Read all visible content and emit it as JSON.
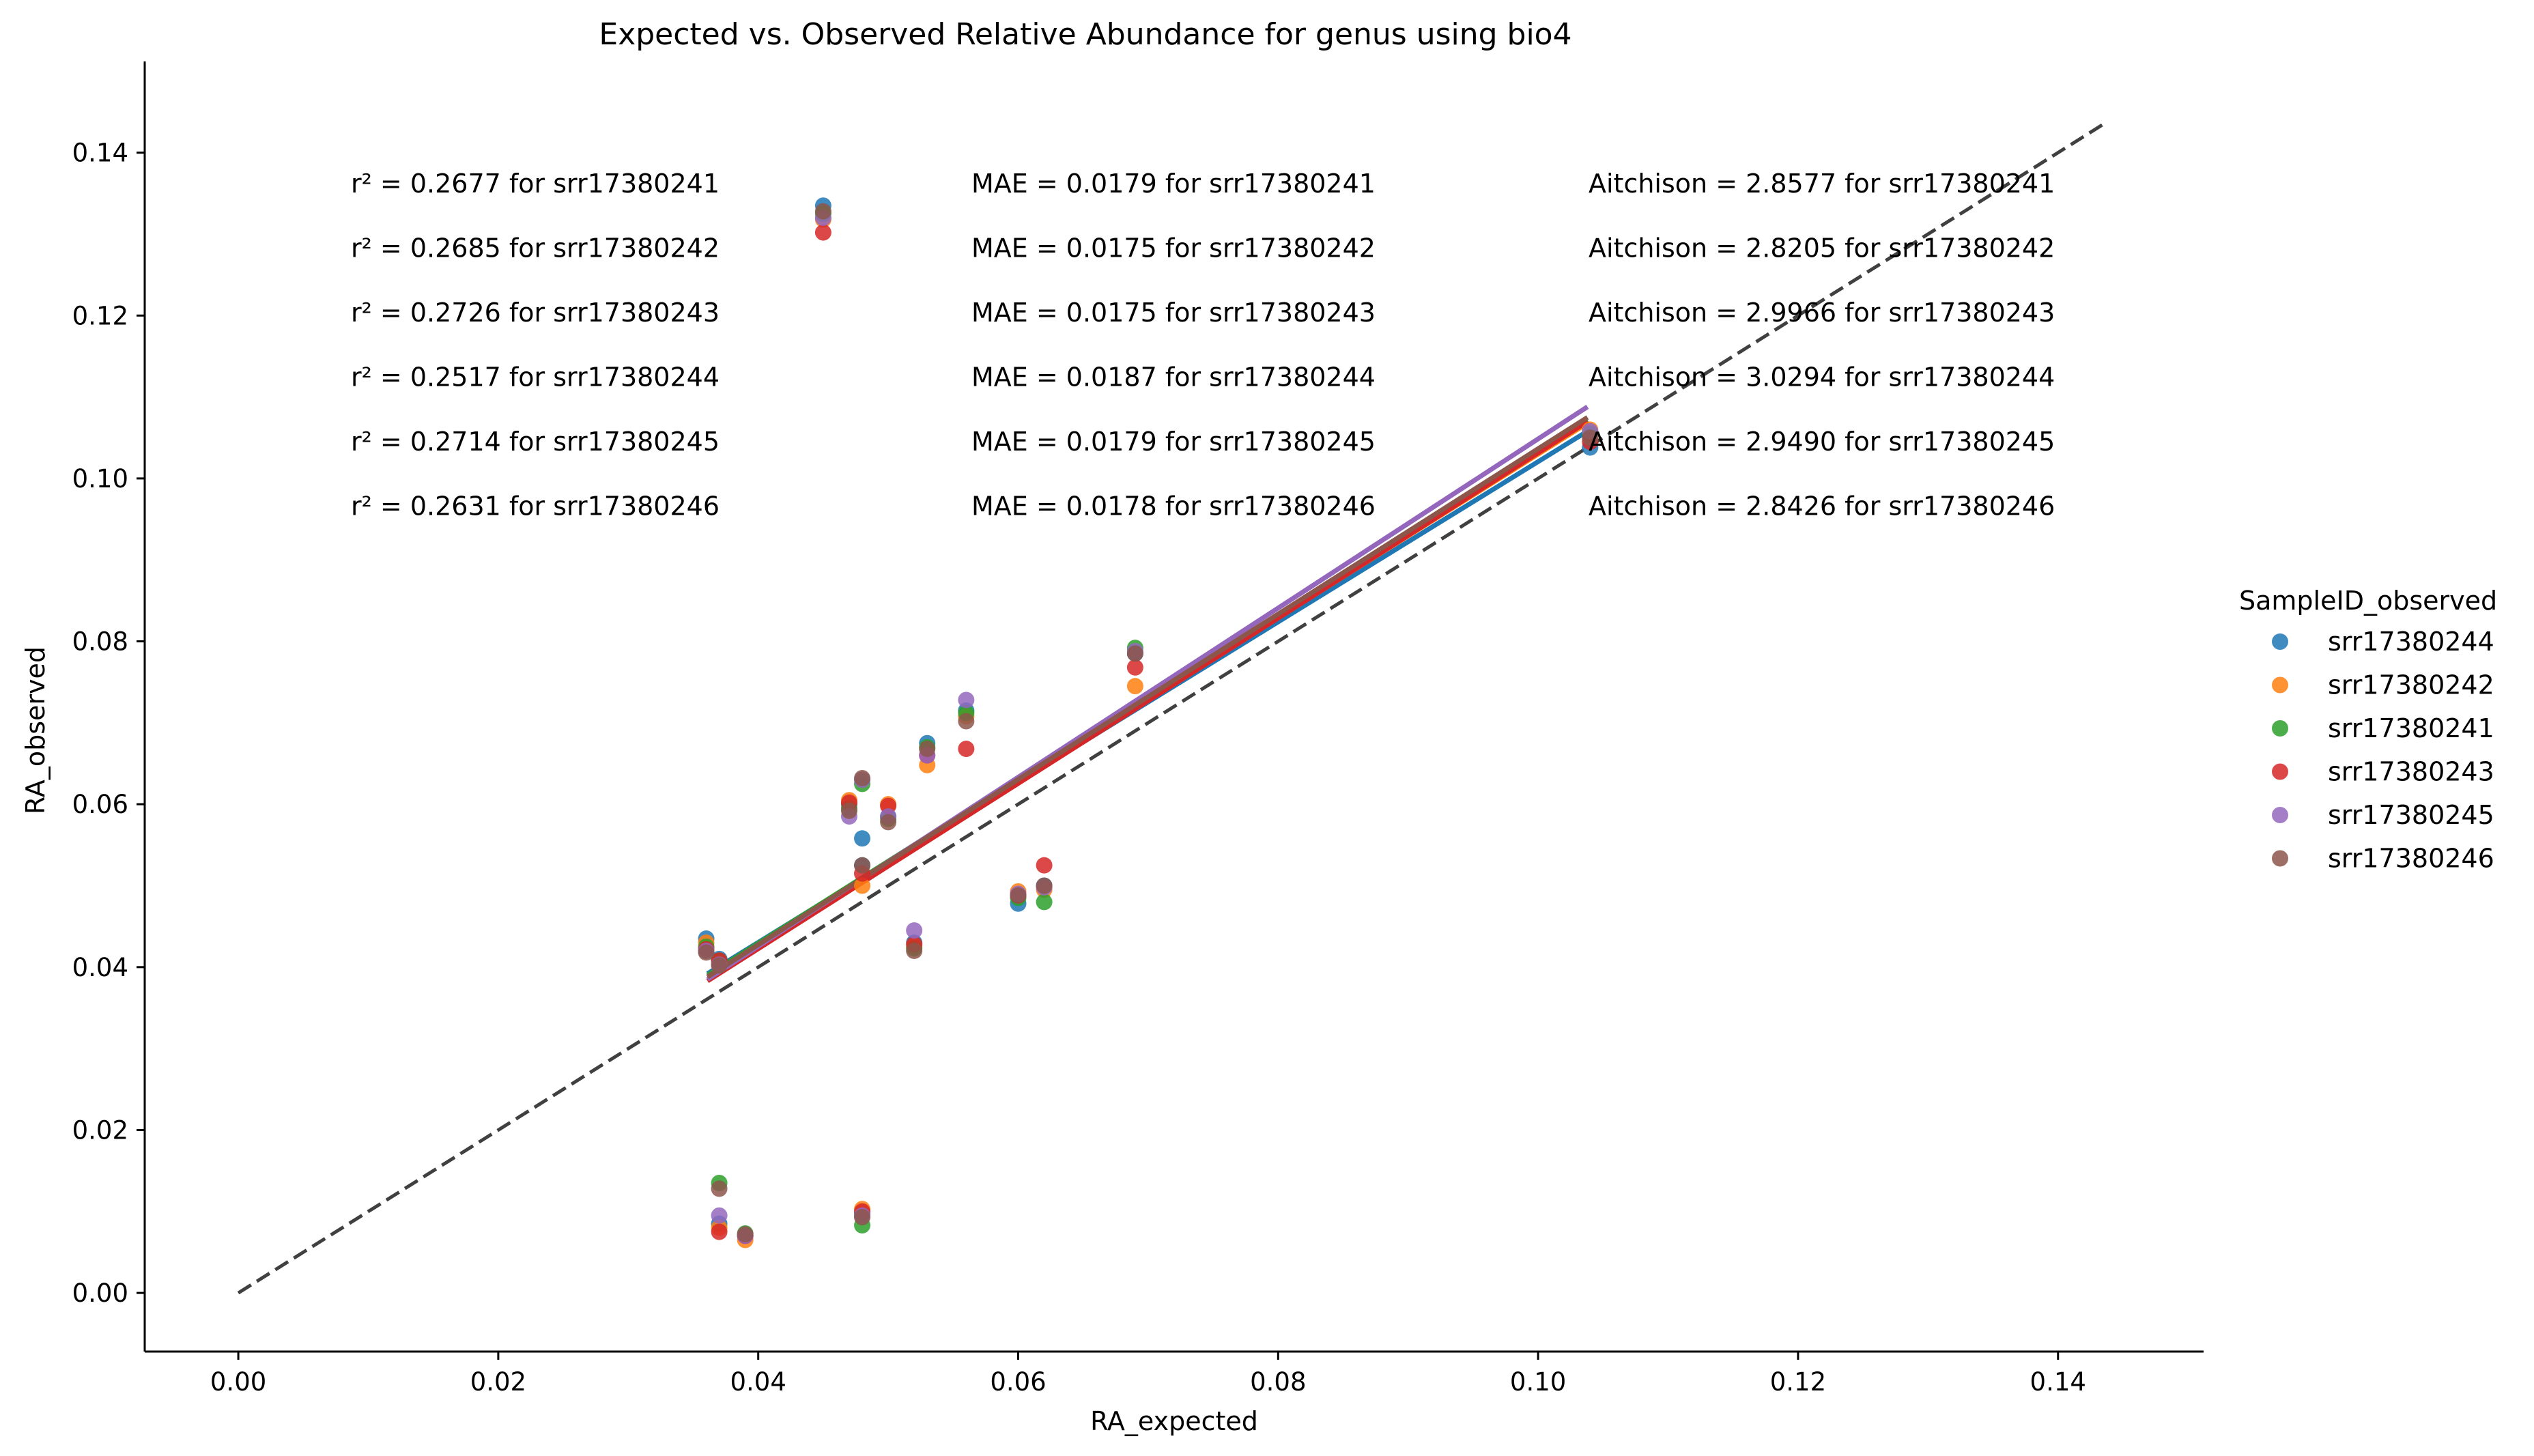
{
  "chart_data": {
    "type": "scatter",
    "title": "Expected vs. Observed Relative Abundance for genus using bio4",
    "xlabel": "RA_expected",
    "ylabel": "RA_observed",
    "xlim": [
      -0.0072,
      0.1512
    ],
    "ylim": [
      -0.0072,
      0.1512
    ],
    "xticks": [
      0.0,
      0.02,
      0.04,
      0.06,
      0.08,
      0.1,
      0.12,
      0.14
    ],
    "yticks": [
      0.0,
      0.02,
      0.04,
      0.06,
      0.08,
      0.1,
      0.12,
      0.14
    ],
    "xtick_labels": [
      "0.00",
      "0.02",
      "0.04",
      "0.06",
      "0.08",
      "0.10",
      "0.12",
      "0.14"
    ],
    "ytick_labels": [
      "0.00",
      "0.02",
      "0.04",
      "0.06",
      "0.08",
      "0.10",
      "0.12",
      "0.14"
    ],
    "identity_line": {
      "from": [
        0.0,
        0.0
      ],
      "to": [
        0.1435,
        0.1435
      ],
      "style": "dashed",
      "color": "#404040"
    },
    "legend": {
      "title": "SampleID_observed",
      "placement": "right"
    },
    "series": [
      {
        "name": "srr17380244",
        "color": "#1f77b4",
        "points": [
          [
            0.036,
            0.0435
          ],
          [
            0.037,
            0.041
          ],
          [
            0.037,
            0.0085
          ],
          [
            0.039,
            0.007
          ],
          [
            0.045,
            0.1335
          ],
          [
            0.047,
            0.06
          ],
          [
            0.048,
            0.0558
          ],
          [
            0.048,
            0.0525
          ],
          [
            0.048,
            0.0098
          ],
          [
            0.05,
            0.0585
          ],
          [
            0.052,
            0.043
          ],
          [
            0.053,
            0.0675
          ],
          [
            0.056,
            0.0715
          ],
          [
            0.06,
            0.0478
          ],
          [
            0.062,
            0.05
          ],
          [
            0.069,
            0.0785
          ],
          [
            0.104,
            0.1038
          ]
        ],
        "fit": [
          [
            0.0361,
            0.0392
          ],
          [
            0.1038,
            0.1058
          ]
        ]
      },
      {
        "name": "srr17380242",
        "color": "#ff7f0e",
        "points": [
          [
            0.036,
            0.043
          ],
          [
            0.037,
            0.0405
          ],
          [
            0.037,
            0.008
          ],
          [
            0.039,
            0.0065
          ],
          [
            0.045,
            0.1318
          ],
          [
            0.047,
            0.0605
          ],
          [
            0.048,
            0.05
          ],
          [
            0.048,
            0.0103
          ],
          [
            0.05,
            0.06
          ],
          [
            0.052,
            0.0425
          ],
          [
            0.053,
            0.0648
          ],
          [
            0.056,
            0.0708
          ],
          [
            0.06,
            0.0493
          ],
          [
            0.062,
            0.0495
          ],
          [
            0.069,
            0.0745
          ],
          [
            0.104,
            0.106
          ]
        ],
        "fit": [
          [
            0.0361,
            0.0388
          ],
          [
            0.1038,
            0.1068
          ]
        ]
      },
      {
        "name": "srr17380241",
        "color": "#2ca02c",
        "points": [
          [
            0.036,
            0.0425
          ],
          [
            0.037,
            0.0408
          ],
          [
            0.037,
            0.0135
          ],
          [
            0.039,
            0.0073
          ],
          [
            0.045,
            0.1325
          ],
          [
            0.047,
            0.0595
          ],
          [
            0.048,
            0.0625
          ],
          [
            0.048,
            0.0083
          ],
          [
            0.05,
            0.0582
          ],
          [
            0.052,
            0.0423
          ],
          [
            0.053,
            0.067
          ],
          [
            0.056,
            0.0712
          ],
          [
            0.06,
            0.0485
          ],
          [
            0.062,
            0.048
          ],
          [
            0.069,
            0.0792
          ],
          [
            0.104,
            0.1055
          ]
        ],
        "fit": [
          [
            0.0361,
            0.039
          ],
          [
            0.1038,
            0.1072
          ]
        ]
      },
      {
        "name": "srr17380243",
        "color": "#d62728",
        "points": [
          [
            0.036,
            0.0422
          ],
          [
            0.037,
            0.0408
          ],
          [
            0.037,
            0.0075
          ],
          [
            0.039,
            0.007
          ],
          [
            0.045,
            0.1302
          ],
          [
            0.047,
            0.0602
          ],
          [
            0.048,
            0.0515
          ],
          [
            0.048,
            0.01
          ],
          [
            0.05,
            0.0598
          ],
          [
            0.052,
            0.0428
          ],
          [
            0.053,
            0.066
          ],
          [
            0.056,
            0.0668
          ],
          [
            0.06,
            0.0488
          ],
          [
            0.062,
            0.0525
          ],
          [
            0.069,
            0.0768
          ],
          [
            0.104,
            0.1045
          ]
        ],
        "fit": [
          [
            0.0361,
            0.0383
          ],
          [
            0.1038,
            0.107
          ]
        ]
      },
      {
        "name": "srr17380245",
        "color": "#9467bd",
        "points": [
          [
            0.036,
            0.042
          ],
          [
            0.037,
            0.0403
          ],
          [
            0.037,
            0.0095
          ],
          [
            0.039,
            0.007
          ],
          [
            0.045,
            0.132
          ],
          [
            0.047,
            0.0585
          ],
          [
            0.048,
            0.063
          ],
          [
            0.048,
            0.0095
          ],
          [
            0.05,
            0.0585
          ],
          [
            0.052,
            0.0445
          ],
          [
            0.053,
            0.066
          ],
          [
            0.056,
            0.0728
          ],
          [
            0.06,
            0.049
          ],
          [
            0.062,
            0.0498
          ],
          [
            0.069,
            0.0788
          ],
          [
            0.104,
            0.1058
          ]
        ],
        "fit": [
          [
            0.0361,
            0.0385
          ],
          [
            0.1038,
            0.1088
          ]
        ]
      },
      {
        "name": "srr17380246",
        "color": "#8c564b",
        "points": [
          [
            0.036,
            0.0418
          ],
          [
            0.037,
            0.0402
          ],
          [
            0.037,
            0.0128
          ],
          [
            0.039,
            0.0072
          ],
          [
            0.045,
            0.1328
          ],
          [
            0.047,
            0.0592
          ],
          [
            0.048,
            0.0632
          ],
          [
            0.048,
            0.0525
          ],
          [
            0.048,
            0.0093
          ],
          [
            0.05,
            0.0578
          ],
          [
            0.052,
            0.042
          ],
          [
            0.053,
            0.0668
          ],
          [
            0.056,
            0.0702
          ],
          [
            0.06,
            0.0488
          ],
          [
            0.062,
            0.05
          ],
          [
            0.069,
            0.0785
          ],
          [
            0.104,
            0.105
          ]
        ],
        "fit": [
          [
            0.0361,
            0.0388
          ],
          [
            0.1038,
            0.1075
          ]
        ]
      }
    ],
    "annotations": {
      "r2": [
        "r² = 0.2677 for srr17380241",
        "r² = 0.2685 for srr17380242",
        "r² = 0.2726 for srr17380243",
        "r² = 0.2517 for srr17380244",
        "r² = 0.2714 for srr17380245",
        "r² = 0.2631 for srr17380246"
      ],
      "mae": [
        "MAE = 0.0179 for srr17380241",
        "MAE = 0.0175 for srr17380242",
        "MAE = 0.0175 for srr17380243",
        "MAE = 0.0187 for srr17380244",
        "MAE = 0.0179 for srr17380245",
        "MAE = 0.0178 for srr17380246"
      ],
      "aitchison": [
        "Aitchison = 2.8577 for srr17380241",
        "Aitchison = 2.8205 for srr17380242",
        "Aitchison = 2.9966 for srr17380243",
        "Aitchison = 3.0294 for srr17380244",
        "Aitchison = 2.9490 for srr17380245",
        "Aitchison = 2.8426 for srr17380246"
      ]
    }
  }
}
